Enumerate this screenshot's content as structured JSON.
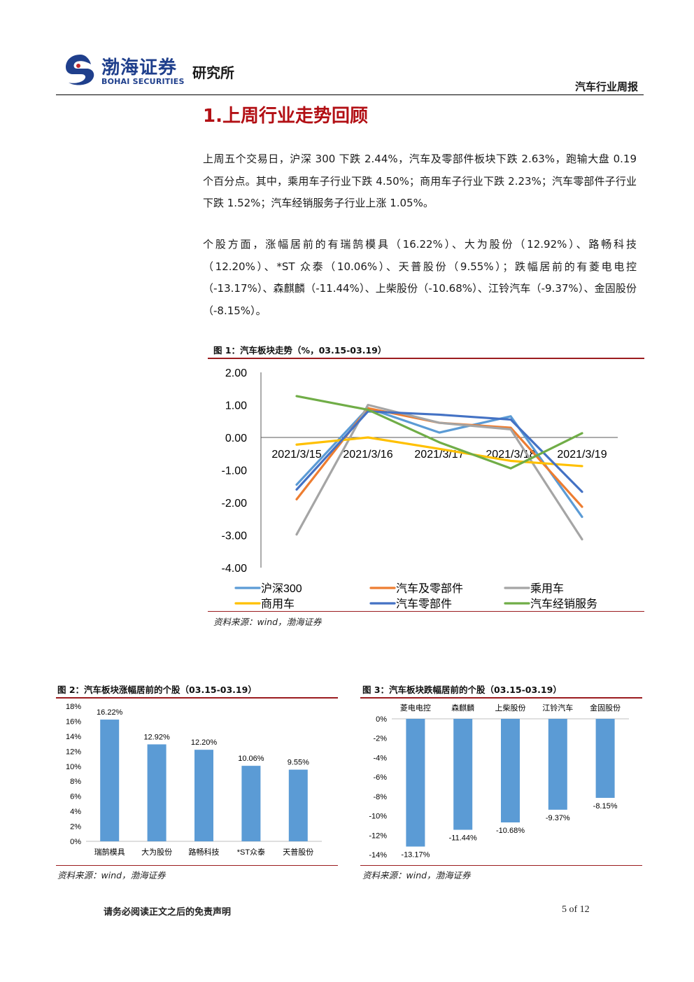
{
  "header": {
    "brand_cn": "渤海证券",
    "brand_en": "BOHAI SECURITIES",
    "institute": "研究所",
    "report_type": "汽车行业周报"
  },
  "section": {
    "title": "1.上周行业走势回顾"
  },
  "paragraphs": [
    "上周五个交易日，沪深 300 下跌 2.44%，汽车及零部件板块下跌 2.63%，跑输大盘 0.19 个百分点。其中，乘用车子行业下跌 4.50%；商用车子行业下跌 2.23%；汽车零部件子行业下跌 1.52%；汽车经销服务子行业上涨 1.05%。",
    "个股方面，涨幅居前的有瑞鹄模具（16.22%）、大为股份（12.92%）、路畅科技（12.20%）、*ST 众泰（10.06%）、天普股份（9.55%）；跌幅居前的有菱电电控（-13.17%）、森麒麟（-11.44%）、上柴股份（-10.68%）、江铃汽车（-9.37%）、金固股份（-8.15%）。"
  ],
  "figures": {
    "fig1": {
      "title": "图 1：汽车板块走势（%，03.15-03.19）",
      "source": "资料来源：wind，渤海证券"
    },
    "fig2": {
      "title": "图 2：汽车板块涨幅居前的个股（03.15-03.19）",
      "source": "资料来源：wind，渤海证券"
    },
    "fig3": {
      "title": "图 3：汽车板块跌幅居前的个股（03.15-03.19）",
      "source": "资料来源：wind，渤海证券"
    }
  },
  "chart_data": [
    {
      "type": "line",
      "x": [
        "2021/3/15",
        "2021/3/16",
        "2021/3/17",
        "2021/3/18",
        "2021/3/19"
      ],
      "ylim": [
        -4,
        2
      ],
      "yticks": [
        "2.00",
        "1.00",
        "0.00",
        "-1.00",
        "-2.00",
        "-3.00",
        "-4.00"
      ],
      "legend_position": "bottom",
      "grid": false,
      "series": [
        {
          "name": "沪深300",
          "color": "#5b9bd5",
          "values": [
            -1.45,
            0.9,
            0.15,
            0.65,
            -2.44
          ]
        },
        {
          "name": "汽车及零部件",
          "color": "#ed7d31",
          "values": [
            -1.9,
            0.9,
            0.45,
            0.3,
            -2.13
          ]
        },
        {
          "name": "乘用车",
          "color": "#a5a5a5",
          "values": [
            -2.98,
            1.0,
            0.45,
            0.25,
            -3.13
          ]
        },
        {
          "name": "商用车",
          "color": "#ffc000",
          "values": [
            -0.22,
            0.0,
            -0.35,
            -0.72,
            -0.88
          ]
        },
        {
          "name": "汽车零部件",
          "color": "#4472c4",
          "values": [
            -1.6,
            0.8,
            0.7,
            0.55,
            -1.67
          ]
        },
        {
          "name": "汽车经销服务",
          "color": "#70ad47",
          "values": [
            1.27,
            0.85,
            -0.15,
            -0.95,
            0.13
          ]
        }
      ]
    },
    {
      "type": "bar",
      "categories": [
        "瑞鹄模具",
        "大为股份",
        "路畅科技",
        "*ST众泰",
        "天普股份"
      ],
      "values": [
        16.22,
        12.92,
        12.2,
        10.06,
        9.55
      ],
      "labels": [
        "16.22%",
        "12.92%",
        "12.20%",
        "10.06%",
        "9.55%"
      ],
      "yticks": [
        "18%",
        "16%",
        "14%",
        "12%",
        "10%",
        "8%",
        "6%",
        "4%",
        "2%",
        "0%"
      ],
      "ylim": [
        0,
        18
      ],
      "color": "#5b9bd5"
    },
    {
      "type": "bar",
      "categories": [
        "菱电电控",
        "森麒麟",
        "上柴股份",
        "江铃汽车",
        "金固股份"
      ],
      "values": [
        -13.17,
        -11.44,
        -10.68,
        -9.37,
        -8.15
      ],
      "labels": [
        "-13.17%",
        "-11.44%",
        "-10.68%",
        "-9.37%",
        "-8.15%"
      ],
      "yticks": [
        "0%",
        "-2%",
        "-4%",
        "-6%",
        "-8%",
        "-10%",
        "-12%",
        "-14%"
      ],
      "ylim": [
        -14,
        0
      ],
      "color": "#5b9bd5"
    }
  ],
  "footer": {
    "disclaimer": "请务必阅读正文之后的免责声明",
    "page": "5 of 12"
  }
}
